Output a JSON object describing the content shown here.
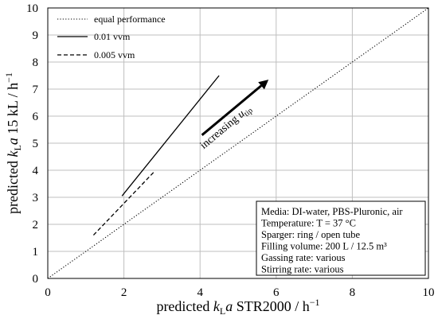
{
  "chart_data": {
    "type": "line",
    "xlabel": {
      "pre": "predicted ",
      "k": "k",
      "sub": "L",
      "a": "a",
      "post": " STR2000 / h",
      "sup": "−1"
    },
    "ylabel": {
      "pre": "predicted ",
      "k": "k",
      "sub": "L",
      "a": "a",
      "post": " 15 kL / h",
      "sup": "−1"
    },
    "xlim": [
      0,
      10
    ],
    "ylim": [
      0,
      10
    ],
    "xticks": [
      "0",
      "2",
      "4",
      "6",
      "8",
      "10"
    ],
    "yticks": [
      "0",
      "1",
      "2",
      "3",
      "4",
      "5",
      "6",
      "7",
      "8",
      "9",
      "10"
    ],
    "grid": true,
    "legend_position": "top-left",
    "series": [
      {
        "name": "equal performance",
        "style": "dotted",
        "x": [
          0,
          10
        ],
        "y": [
          0,
          10
        ]
      },
      {
        "name": "0.01 vvm",
        "style": "solid",
        "x": [
          1.95,
          4.5
        ],
        "y": [
          3.05,
          7.5
        ]
      },
      {
        "name": "0.005 vvm",
        "style": "dashed",
        "x": [
          1.2,
          2.8
        ],
        "y": [
          1.6,
          3.95
        ]
      }
    ],
    "annotation": {
      "text_pre": "increasing ",
      "u": "u",
      "sub": "tip",
      "arrow_from": [
        4.05,
        5.3
      ],
      "arrow_to": [
        5.8,
        7.35
      ]
    },
    "info_box": {
      "lines": [
        "Media: DI-water, PBS-Pluronic, air",
        "Temperature: T = 37 °C",
        "Sparger: ring / open tube",
        "Filling volume: 200 L / 12.5 m³",
        "Gassing rate: various",
        "Stirring rate: various"
      ]
    }
  }
}
